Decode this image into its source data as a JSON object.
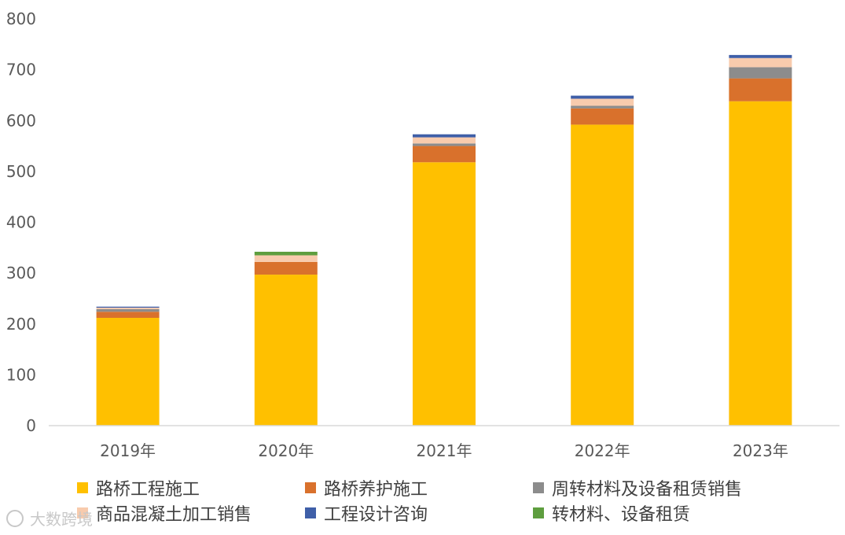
{
  "chart_data": {
    "type": "bar",
    "stacked": true,
    "categories": [
      "2019年",
      "2020年",
      "2021年",
      "2022年",
      "2023年"
    ],
    "ylim": [
      0,
      800
    ],
    "yticks": [
      "0",
      "100",
      "200",
      "300",
      "400",
      "500",
      "600",
      "700",
      "800"
    ],
    "grid": false,
    "legend_position": "bottom",
    "series": [
      {
        "name": "路桥工程施工",
        "color": "#FFC000",
        "values": [
          212,
          297,
          518,
          592,
          638
        ]
      },
      {
        "name": "路桥养护施工",
        "color": "#D9712C",
        "values": [
          12,
          25,
          32,
          32,
          45
        ]
      },
      {
        "name": "周转材料及设备租赁销售",
        "color": "#8C8C8C",
        "values": [
          5,
          0,
          5,
          5,
          22
        ]
      },
      {
        "name": "商品混凝土加工销售",
        "color": "#F8CBAD",
        "values": [
          3,
          13,
          12,
          14,
          18
        ]
      },
      {
        "name": "工程设计咨询",
        "color": "#3F5FA8",
        "values": [
          2,
          0,
          6,
          6,
          6
        ]
      },
      {
        "name": "转材料、设备租赁",
        "color": "#5E9E3F",
        "values": [
          0,
          7,
          0,
          0,
          0
        ]
      }
    ]
  },
  "watermark": {
    "text": "大数跨境"
  }
}
